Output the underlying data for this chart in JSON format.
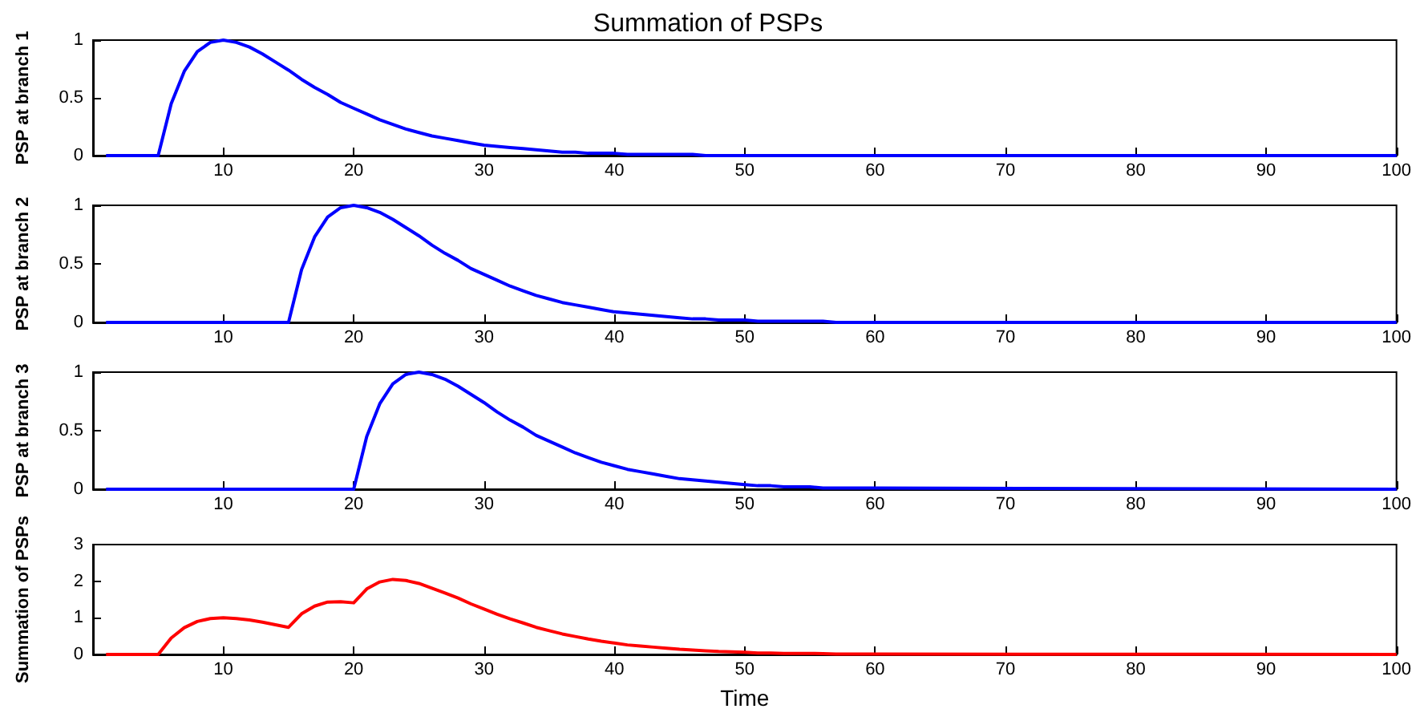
{
  "chart_data": [
    {
      "type": "line",
      "title": "Summation of PSPs",
      "ylabel": "PSP at branch 1",
      "x": [
        1,
        2,
        3,
        4,
        5,
        6,
        7,
        8,
        9,
        10,
        11,
        12,
        13,
        14,
        15,
        16,
        17,
        18,
        19,
        20,
        21,
        22,
        23,
        24,
        25,
        26,
        27,
        28,
        29,
        30,
        31,
        32,
        33,
        34,
        35,
        36,
        37,
        38,
        39,
        40,
        41,
        42,
        43,
        44,
        45,
        46,
        47,
        48,
        49,
        50,
        51,
        52,
        53,
        54,
        55,
        56,
        57,
        58,
        59,
        60,
        100
      ],
      "xlim": [
        0,
        100
      ],
      "xticks": [
        10,
        20,
        30,
        40,
        50,
        60,
        70,
        80,
        90,
        100
      ],
      "ylim": [
        0,
        1
      ],
      "yticks": [
        0,
        0.5,
        1
      ],
      "grid": false,
      "marker": "none",
      "series": [
        {
          "color": "#0000ff",
          "values": [
            0,
            0,
            0,
            0,
            0,
            0.45,
            0.73,
            0.9,
            0.98,
            1,
            0.98,
            0.94,
            0.88,
            0.81,
            0.74,
            0.66,
            0.59,
            0.53,
            0.46,
            0.41,
            0.36,
            0.31,
            0.27,
            0.23,
            0.2,
            0.17,
            0.15,
            0.13,
            0.11,
            0.09,
            0.08,
            0.07,
            0.06,
            0.05,
            0.04,
            0.03,
            0.03,
            0.02,
            0.02,
            0.02,
            0.01,
            0.01,
            0.01,
            0.01,
            0.01,
            0.01,
            0,
            0,
            0,
            0,
            0,
            0,
            0,
            0,
            0,
            0,
            0,
            0,
            0,
            0,
            0
          ]
        }
      ]
    },
    {
      "type": "line",
      "ylabel": "PSP at branch 2",
      "x": [
        1,
        2,
        3,
        4,
        5,
        6,
        7,
        8,
        9,
        10,
        11,
        12,
        13,
        14,
        15,
        16,
        17,
        18,
        19,
        20,
        21,
        22,
        23,
        24,
        25,
        26,
        27,
        28,
        29,
        30,
        31,
        32,
        33,
        34,
        35,
        36,
        37,
        38,
        39,
        40,
        41,
        42,
        43,
        44,
        45,
        46,
        47,
        48,
        49,
        50,
        51,
        52,
        53,
        54,
        55,
        56,
        57,
        58,
        59,
        60,
        100
      ],
      "xlim": [
        0,
        100
      ],
      "xticks": [
        10,
        20,
        30,
        40,
        50,
        60,
        70,
        80,
        90,
        100
      ],
      "ylim": [
        0,
        1
      ],
      "yticks": [
        0,
        0.5,
        1
      ],
      "grid": false,
      "marker": "none",
      "series": [
        {
          "color": "#0000ff",
          "values": [
            0,
            0,
            0,
            0,
            0,
            0,
            0,
            0,
            0,
            0,
            0,
            0,
            0,
            0,
            0,
            0.45,
            0.73,
            0.9,
            0.98,
            1,
            0.98,
            0.94,
            0.88,
            0.81,
            0.74,
            0.66,
            0.59,
            0.53,
            0.46,
            0.41,
            0.36,
            0.31,
            0.27,
            0.23,
            0.2,
            0.17,
            0.15,
            0.13,
            0.11,
            0.09,
            0.08,
            0.07,
            0.06,
            0.05,
            0.04,
            0.03,
            0.03,
            0.02,
            0.02,
            0.02,
            0.01,
            0.01,
            0.01,
            0.01,
            0.01,
            0.01,
            0,
            0,
            0,
            0,
            0
          ]
        }
      ]
    },
    {
      "type": "line",
      "ylabel": "PSP at branch 3",
      "x": [
        1,
        2,
        3,
        4,
        5,
        6,
        7,
        8,
        9,
        10,
        11,
        12,
        13,
        14,
        15,
        16,
        17,
        18,
        19,
        20,
        21,
        22,
        23,
        24,
        25,
        26,
        27,
        28,
        29,
        30,
        31,
        32,
        33,
        34,
        35,
        36,
        37,
        38,
        39,
        40,
        41,
        42,
        43,
        44,
        45,
        46,
        47,
        48,
        49,
        50,
        51,
        52,
        53,
        54,
        55,
        56,
        57,
        58,
        59,
        60,
        100
      ],
      "xlim": [
        0,
        100
      ],
      "xticks": [
        10,
        20,
        30,
        40,
        50,
        60,
        70,
        80,
        90,
        100
      ],
      "ylim": [
        0,
        1
      ],
      "yticks": [
        0,
        0.5,
        1
      ],
      "grid": false,
      "marker": "none",
      "series": [
        {
          "color": "#0000ff",
          "values": [
            0,
            0,
            0,
            0,
            0,
            0,
            0,
            0,
            0,
            0,
            0,
            0,
            0,
            0,
            0,
            0,
            0,
            0,
            0,
            0,
            0.45,
            0.73,
            0.9,
            0.98,
            1,
            0.98,
            0.94,
            0.88,
            0.81,
            0.74,
            0.66,
            0.59,
            0.53,
            0.46,
            0.41,
            0.36,
            0.31,
            0.27,
            0.23,
            0.2,
            0.17,
            0.15,
            0.13,
            0.11,
            0.09,
            0.08,
            0.07,
            0.06,
            0.05,
            0.04,
            0.03,
            0.03,
            0.02,
            0.02,
            0.02,
            0.01,
            0.01,
            0.01,
            0.01,
            0.01,
            0
          ]
        }
      ]
    },
    {
      "type": "line",
      "ylabel": "Summation of PSPs",
      "xlabel": "Time",
      "x": [
        1,
        2,
        3,
        4,
        5,
        6,
        7,
        8,
        9,
        10,
        11,
        12,
        13,
        14,
        15,
        16,
        17,
        18,
        19,
        20,
        21,
        22,
        23,
        24,
        25,
        26,
        27,
        28,
        29,
        30,
        31,
        32,
        33,
        34,
        35,
        36,
        37,
        38,
        39,
        40,
        41,
        42,
        43,
        44,
        45,
        46,
        47,
        48,
        49,
        50,
        51,
        52,
        53,
        54,
        55,
        56,
        57,
        58,
        59,
        60,
        100
      ],
      "xlim": [
        0,
        100
      ],
      "xticks": [
        10,
        20,
        30,
        40,
        50,
        60,
        70,
        80,
        90,
        100
      ],
      "ylim": [
        0,
        3
      ],
      "yticks": [
        0,
        1,
        2,
        3
      ],
      "grid": false,
      "marker": "none",
      "series": [
        {
          "color": "#ff0000",
          "values": [
            0,
            0,
            0,
            0,
            0,
            0.45,
            0.73,
            0.9,
            0.98,
            1,
            0.98,
            0.94,
            0.88,
            0.81,
            0.74,
            1.11,
            1.32,
            1.43,
            1.44,
            1.41,
            1.79,
            1.98,
            2.05,
            2.02,
            1.94,
            1.81,
            1.68,
            1.54,
            1.38,
            1.24,
            1.1,
            0.97,
            0.86,
            0.74,
            0.65,
            0.56,
            0.49,
            0.42,
            0.36,
            0.31,
            0.26,
            0.23,
            0.2,
            0.17,
            0.14,
            0.12,
            0.1,
            0.08,
            0.07,
            0.06,
            0.04,
            0.04,
            0.03,
            0.03,
            0.03,
            0.02,
            0.01,
            0.01,
            0.01,
            0.01,
            0
          ]
        }
      ]
    }
  ]
}
